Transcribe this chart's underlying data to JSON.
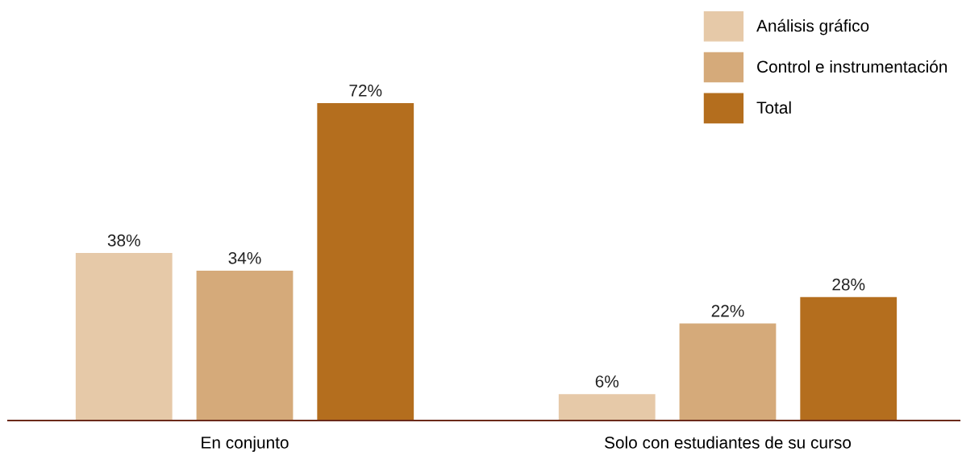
{
  "chart_data": {
    "type": "bar",
    "categories": [
      "En conjunto",
      "Solo con estudiantes de su curso"
    ],
    "series": [
      {
        "name": "Análisis gráfico",
        "color": "#e6c9a8",
        "values": [
          38,
          6
        ],
        "value_labels": [
          "38%",
          "6%"
        ]
      },
      {
        "name": "Control e instrumentación",
        "color": "#d5aa7a",
        "values": [
          34,
          22
        ],
        "value_labels": [
          "34%",
          "22%"
        ]
      },
      {
        "name": "Total",
        "color": "#b46e1e",
        "values": [
          72,
          28
        ],
        "value_labels": [
          "72%",
          "28%"
        ]
      }
    ],
    "legend": "top right",
    "grid": false
  }
}
